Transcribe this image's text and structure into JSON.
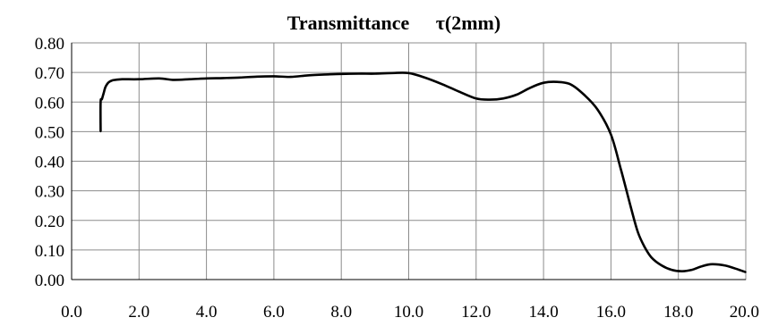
{
  "chart_data": {
    "type": "line",
    "title_main": "Transmittance",
    "title_symbol": "τ(2mm)",
    "xlabel": "",
    "ylabel": "",
    "xlim": [
      0.0,
      20.0
    ],
    "ylim": [
      0.0,
      0.8
    ],
    "x_ticks": [
      "0.0",
      "2.0",
      "4.0",
      "6.0",
      "8.0",
      "10.0",
      "12.0",
      "14.0",
      "16.0",
      "18.0",
      "20.0"
    ],
    "y_ticks": [
      "0.00",
      "0.10",
      "0.20",
      "0.30",
      "0.40",
      "0.50",
      "0.60",
      "0.70",
      "0.80"
    ],
    "grid": true,
    "legend": "none",
    "series": [
      {
        "x": [
          0.86,
          0.86,
          0.9,
          0.95,
          1.0,
          1.05,
          1.1,
          1.2,
          1.3,
          1.5,
          2.0,
          2.6,
          3.0,
          3.5,
          4.0,
          4.5,
          5.0,
          5.5,
          6.0,
          6.5,
          7.0,
          7.5,
          8.0,
          8.5,
          9.0,
          9.5,
          10.0,
          10.5,
          11.0,
          11.5,
          12.0,
          12.4,
          12.8,
          13.2,
          13.6,
          14.0,
          14.4,
          14.8,
          15.2,
          15.6,
          16.0,
          16.3,
          16.6,
          16.8,
          17.0,
          17.2,
          17.5,
          17.8,
          18.1,
          18.4,
          18.7,
          19.0,
          19.4,
          19.8,
          20.0
        ],
        "y": [
          0.5,
          0.6,
          0.61,
          0.63,
          0.65,
          0.66,
          0.667,
          0.673,
          0.675,
          0.677,
          0.677,
          0.68,
          0.675,
          0.677,
          0.68,
          0.681,
          0.683,
          0.686,
          0.687,
          0.685,
          0.69,
          0.693,
          0.695,
          0.696,
          0.696,
          0.698,
          0.698,
          0.682,
          0.66,
          0.635,
          0.612,
          0.608,
          0.612,
          0.625,
          0.648,
          0.665,
          0.668,
          0.66,
          0.625,
          0.575,
          0.49,
          0.37,
          0.24,
          0.16,
          0.11,
          0.075,
          0.048,
          0.033,
          0.028,
          0.033,
          0.045,
          0.052,
          0.047,
          0.033,
          0.025
        ]
      }
    ]
  }
}
